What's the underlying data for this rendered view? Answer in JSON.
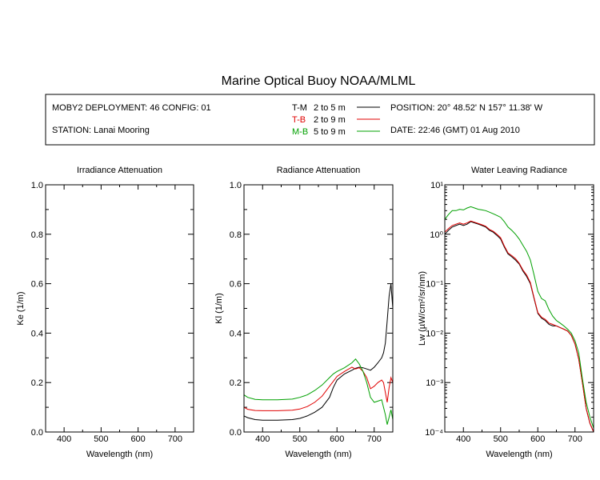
{
  "title": "Marine Optical Buoy NOAA/MLML",
  "info": {
    "deployment": "MOBY2 DEPLOYMENT: 46 CONFIG: 01",
    "station": "STATION: Lanai Mooring",
    "position": "POSITION: 20° 48.52' N   157° 11.38' W",
    "date": "DATE: 22:46 (GMT) 01 Aug 2010"
  },
  "colors": {
    "T-M": "#000000",
    "T-B": "#e00000",
    "M-B": "#00a000"
  },
  "chart_data": [
    {
      "type": "line",
      "title": "Irradiance Attenuation",
      "xlabel": "Wavelength (nm)",
      "ylabel": "Ke  (1/m)",
      "xlim": [
        350,
        750
      ],
      "ylim": [
        0,
        1
      ],
      "xticks": [
        "400",
        "500",
        "600",
        "700"
      ],
      "yticks": [
        "0.0",
        "0.2",
        "0.4",
        "0.6",
        "0.8",
        "1.0"
      ],
      "series": []
    },
    {
      "type": "line",
      "title": "Radiance Attenuation",
      "xlabel": "Wavelength (nm)",
      "ylabel": "Kl  (1/m)",
      "xlim": [
        350,
        750
      ],
      "ylim": [
        0,
        1
      ],
      "xticks": [
        "400",
        "500",
        "600",
        "700"
      ],
      "yticks": [
        "0.0",
        "0.2",
        "0.4",
        "0.6",
        "0.8",
        "1.0"
      ],
      "series": [
        {
          "name": "T-M",
          "label": "T-M",
          "range": "2 to 5  m",
          "color": "#000000",
          "x": [
            350,
            360,
            380,
            400,
            440,
            480,
            500,
            520,
            540,
            560,
            580,
            590,
            600,
            620,
            640,
            650,
            660,
            670,
            680,
            690,
            700,
            710,
            720,
            725,
            730,
            735,
            740,
            745,
            750
          ],
          "y": [
            0.065,
            0.058,
            0.05,
            0.048,
            0.048,
            0.05,
            0.055,
            0.065,
            0.08,
            0.1,
            0.14,
            0.18,
            0.21,
            0.235,
            0.25,
            0.258,
            0.262,
            0.26,
            0.255,
            0.25,
            0.262,
            0.28,
            0.3,
            0.32,
            0.36,
            0.45,
            0.55,
            0.6,
            0.5
          ]
        },
        {
          "name": "T-B",
          "label": "T-B",
          "range": "2 to 9  m",
          "color": "#e00000",
          "x": [
            350,
            360,
            380,
            400,
            440,
            480,
            500,
            520,
            540,
            560,
            580,
            590,
            600,
            620,
            640,
            650,
            660,
            670,
            680,
            690,
            700,
            710,
            720,
            725,
            730,
            735,
            740,
            745,
            750
          ],
          "y": [
            0.1,
            0.092,
            0.087,
            0.086,
            0.086,
            0.088,
            0.093,
            0.103,
            0.12,
            0.145,
            0.185,
            0.205,
            0.225,
            0.245,
            0.262,
            0.255,
            0.26,
            0.245,
            0.22,
            0.175,
            0.185,
            0.2,
            0.21,
            0.2,
            0.16,
            0.12,
            0.18,
            0.22,
            0.2
          ]
        },
        {
          "name": "M-B",
          "label": "M-B",
          "range": "5 to 9  m",
          "color": "#00a000",
          "x": [
            350,
            360,
            380,
            400,
            440,
            480,
            500,
            520,
            540,
            560,
            580,
            590,
            600,
            620,
            640,
            650,
            660,
            670,
            680,
            690,
            700,
            710,
            720,
            725,
            730,
            735,
            740,
            745,
            750
          ],
          "y": [
            0.15,
            0.14,
            0.132,
            0.13,
            0.13,
            0.133,
            0.14,
            0.15,
            0.168,
            0.19,
            0.22,
            0.235,
            0.245,
            0.26,
            0.28,
            0.295,
            0.275,
            0.245,
            0.2,
            0.14,
            0.12,
            0.125,
            0.13,
            0.1,
            0.07,
            0.03,
            0.06,
            0.09,
            0.05
          ]
        }
      ]
    },
    {
      "type": "line",
      "title": "Water Leaving Radiance",
      "xlabel": "Wavelength (nm)",
      "ylabel": "Lw  (µW/cm²/sr/nm)",
      "xlim": [
        350,
        750
      ],
      "ylim": [
        0.0001,
        10
      ],
      "yscale": "log",
      "xticks": [
        "400",
        "500",
        "600",
        "700"
      ],
      "yticks": [
        "10⁻⁴",
        "10⁻³",
        "10⁻²",
        "10⁻¹",
        "10⁰",
        "10¹"
      ],
      "series": [
        {
          "name": "T-M",
          "color": "#000000",
          "x": [
            350,
            360,
            370,
            380,
            390,
            400,
            410,
            420,
            430,
            440,
            450,
            460,
            470,
            480,
            490,
            500,
            510,
            520,
            530,
            540,
            550,
            560,
            570,
            580,
            590,
            600,
            610,
            620,
            630,
            640,
            650,
            660,
            670,
            680,
            690,
            700,
            710,
            720,
            730,
            740,
            750
          ],
          "y": [
            1.0,
            1.2,
            1.4,
            1.5,
            1.6,
            1.5,
            1.6,
            1.8,
            1.7,
            1.6,
            1.5,
            1.4,
            1.2,
            1.1,
            0.95,
            0.8,
            0.55,
            0.4,
            0.35,
            0.3,
            0.25,
            0.18,
            0.14,
            0.1,
            0.05,
            0.025,
            0.02,
            0.018,
            0.015,
            0.014,
            0.014,
            0.013,
            0.012,
            0.011,
            0.009,
            0.006,
            0.003,
            0.001,
            0.0003,
            0.00015,
            0.0001
          ]
        },
        {
          "name": "T-B",
          "color": "#e00000",
          "x": [
            350,
            360,
            370,
            380,
            390,
            400,
            410,
            420,
            430,
            440,
            450,
            460,
            470,
            480,
            490,
            500,
            510,
            520,
            530,
            540,
            550,
            560,
            570,
            580,
            590,
            600,
            610,
            620,
            630,
            640,
            650,
            660,
            670,
            680,
            690,
            700,
            710,
            720,
            730,
            740,
            750
          ],
          "y": [
            1.1,
            1.3,
            1.5,
            1.6,
            1.7,
            1.6,
            1.7,
            1.85,
            1.75,
            1.65,
            1.55,
            1.45,
            1.25,
            1.15,
            1.0,
            0.85,
            0.58,
            0.42,
            0.37,
            0.32,
            0.26,
            0.19,
            0.15,
            0.105,
            0.052,
            0.026,
            0.021,
            0.019,
            0.016,
            0.015,
            0.014,
            0.013,
            0.012,
            0.011,
            0.009,
            0.006,
            0.003,
            0.001,
            0.0003,
            0.00015,
            0.0001
          ]
        },
        {
          "name": "M-B",
          "color": "#00a000",
          "x": [
            350,
            360,
            370,
            380,
            390,
            400,
            410,
            420,
            430,
            440,
            450,
            460,
            470,
            480,
            490,
            500,
            510,
            520,
            530,
            540,
            550,
            560,
            570,
            580,
            590,
            600,
            610,
            620,
            630,
            640,
            650,
            660,
            670,
            680,
            690,
            700,
            710,
            720,
            730,
            740,
            750
          ],
          "y": [
            2.0,
            2.5,
            3.0,
            3.0,
            3.2,
            3.1,
            3.4,
            3.6,
            3.4,
            3.2,
            3.1,
            3.0,
            2.8,
            2.6,
            2.4,
            2.2,
            1.8,
            1.4,
            1.2,
            1.0,
            0.8,
            0.6,
            0.45,
            0.3,
            0.15,
            0.07,
            0.05,
            0.045,
            0.03,
            0.022,
            0.018,
            0.016,
            0.014,
            0.012,
            0.01,
            0.007,
            0.004,
            0.0012,
            0.0004,
            0.0002,
            0.00012
          ]
        }
      ]
    }
  ]
}
